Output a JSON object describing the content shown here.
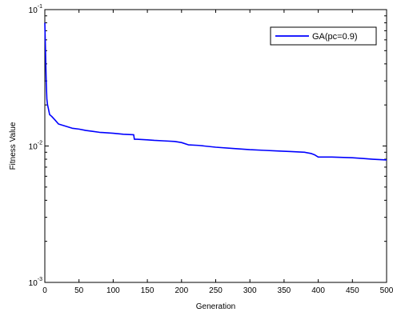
{
  "chart_data": {
    "type": "line",
    "xlabel": "Generation",
    "ylabel": "Fitness Value",
    "xlim": [
      0,
      500
    ],
    "ylim": [
      0.001,
      0.1
    ],
    "y_scale": "log",
    "grid": false,
    "legend_position": "top-right",
    "x_ticks": [
      "0",
      "50",
      "100",
      "150",
      "200",
      "250",
      "300",
      "350",
      "400",
      "450",
      "500"
    ],
    "y_ticks": [
      {
        "base": "10",
        "exp": "-3"
      },
      {
        "base": "10",
        "exp": "-2"
      },
      {
        "base": "10",
        "exp": "-1"
      }
    ],
    "series": [
      {
        "name": "GA(pc=0.9)",
        "color": "#0000ff",
        "x": [
          0,
          1,
          2,
          3,
          4,
          5,
          7,
          10,
          15,
          20,
          30,
          40,
          50,
          60,
          70,
          80,
          100,
          115,
          130,
          131,
          135,
          150,
          160,
          175,
          190,
          200,
          210,
          225,
          250,
          275,
          300,
          320,
          340,
          360,
          380,
          390,
          395,
          400,
          420,
          450,
          465,
          480,
          500
        ],
        "y": [
          0.08,
          0.05,
          0.03,
          0.022,
          0.02,
          0.019,
          0.017,
          0.0165,
          0.0155,
          0.0145,
          0.014,
          0.0135,
          0.0133,
          0.013,
          0.0128,
          0.0126,
          0.0124,
          0.0122,
          0.0121,
          0.0112,
          0.0112,
          0.0111,
          0.011,
          0.0109,
          0.0108,
          0.0106,
          0.0102,
          0.0101,
          0.0098,
          0.0096,
          0.0094,
          0.0093,
          0.0092,
          0.0091,
          0.009,
          0.0088,
          0.0086,
          0.0083,
          0.0083,
          0.0082,
          0.0081,
          0.008,
          0.0079
        ]
      }
    ]
  }
}
